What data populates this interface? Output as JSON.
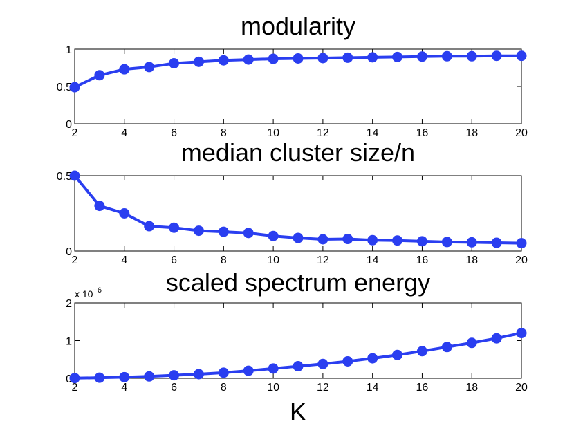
{
  "chart_data": [
    {
      "type": "line",
      "title": "modularity",
      "xlabel": "",
      "ylabel": "",
      "x": [
        2,
        3,
        4,
        5,
        6,
        7,
        8,
        9,
        10,
        11,
        12,
        13,
        14,
        15,
        16,
        17,
        18,
        19,
        20
      ],
      "values": [
        0.49,
        0.65,
        0.73,
        0.76,
        0.81,
        0.83,
        0.85,
        0.86,
        0.87,
        0.875,
        0.88,
        0.885,
        0.89,
        0.895,
        0.9,
        0.905,
        0.905,
        0.91,
        0.91
      ],
      "xlim": [
        2,
        20
      ],
      "ylim": [
        0,
        1
      ],
      "xticks": [
        "2",
        "4",
        "6",
        "8",
        "10",
        "12",
        "14",
        "16",
        "18",
        "20"
      ],
      "yticks": [
        "0",
        "0.5",
        "1"
      ],
      "color": "#2a3ef0"
    },
    {
      "type": "line",
      "title": "median cluster size/n",
      "xlabel": "",
      "ylabel": "",
      "x": [
        2,
        3,
        4,
        5,
        6,
        7,
        8,
        9,
        10,
        11,
        12,
        13,
        14,
        15,
        16,
        17,
        18,
        19,
        20
      ],
      "values": [
        0.5,
        0.3,
        0.25,
        0.165,
        0.155,
        0.135,
        0.128,
        0.12,
        0.1,
        0.087,
        0.078,
        0.08,
        0.072,
        0.07,
        0.065,
        0.06,
        0.058,
        0.055,
        0.052
      ],
      "xlim": [
        2,
        20
      ],
      "ylim": [
        0,
        0.5
      ],
      "xticks": [
        "2",
        "4",
        "6",
        "8",
        "10",
        "12",
        "14",
        "16",
        "18",
        "20"
      ],
      "yticks": [
        "0",
        "0.5"
      ],
      "color": "#2a3ef0"
    },
    {
      "type": "line",
      "title": "scaled spectrum energy",
      "xlabel": "K",
      "ylabel": "",
      "y_multiplier": "x 10",
      "y_exponent": "−6",
      "x": [
        2,
        3,
        4,
        5,
        6,
        7,
        8,
        9,
        10,
        11,
        12,
        13,
        14,
        15,
        16,
        17,
        18,
        19,
        20
      ],
      "values": [
        0.005,
        0.015,
        0.03,
        0.05,
        0.08,
        0.11,
        0.15,
        0.2,
        0.26,
        0.32,
        0.38,
        0.45,
        0.53,
        0.62,
        0.72,
        0.83,
        0.94,
        1.06,
        1.2
      ],
      "xlim": [
        2,
        20
      ],
      "ylim": [
        0,
        2
      ],
      "xticks": [
        "2",
        "4",
        "6",
        "8",
        "10",
        "12",
        "14",
        "16",
        "18",
        "20"
      ],
      "yticks": [
        "0",
        "1",
        "2"
      ],
      "color": "#2a3ef0"
    }
  ]
}
